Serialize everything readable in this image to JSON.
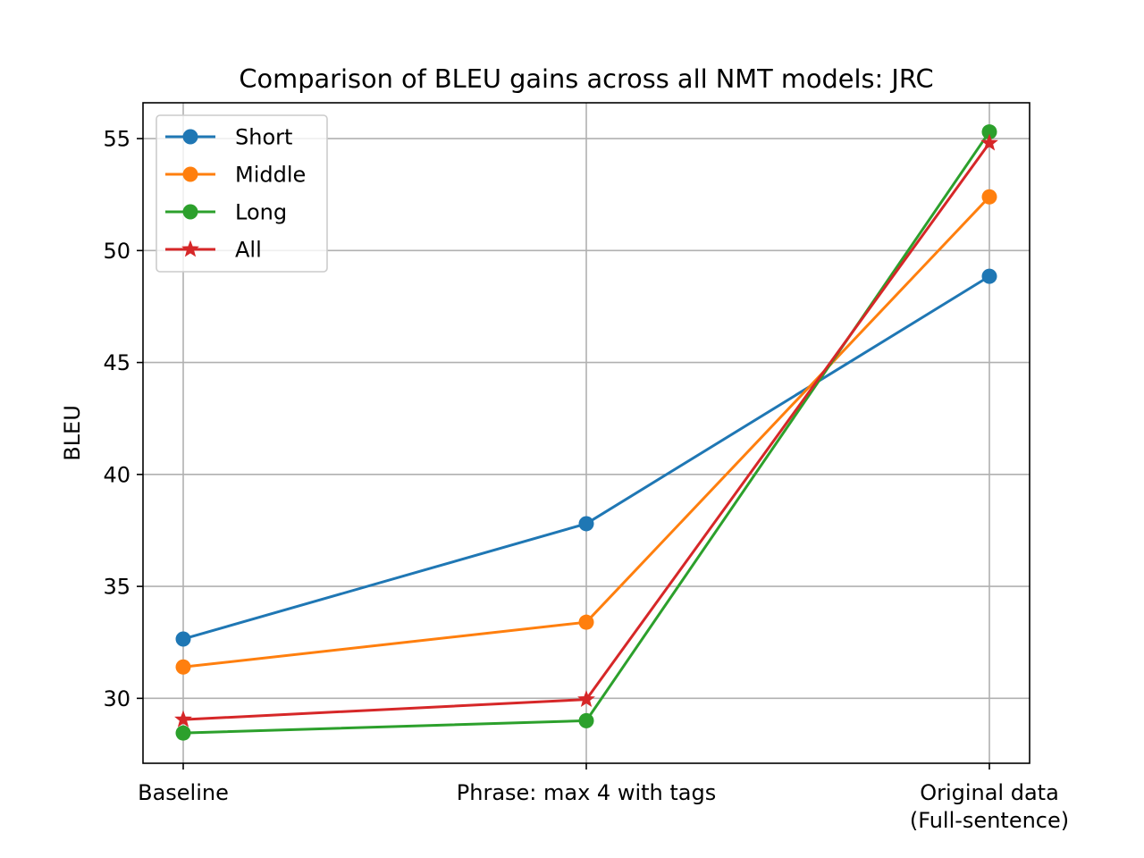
{
  "chart_data": {
    "type": "line",
    "title": "Comparison of BLEU gains across all NMT models: JRC",
    "xlabel": "",
    "ylabel": "BLEU",
    "categories": [
      [
        "Baseline"
      ],
      [
        "Phrase: max 4 with tags"
      ],
      [
        "Original data",
        "(Full-sentence)"
      ]
    ],
    "ylim": [
      27.1,
      56.6
    ],
    "yticks": [
      30,
      35,
      40,
      45,
      50,
      55
    ],
    "grid": true,
    "legend_position": "top-left",
    "series": [
      {
        "name": "Short",
        "color": "#1f77b4",
        "marker": "circle",
        "values": [
          32.65,
          37.8,
          48.85
        ]
      },
      {
        "name": "Middle",
        "color": "#ff7f0e",
        "marker": "circle",
        "values": [
          31.4,
          33.4,
          52.4
        ]
      },
      {
        "name": "Long",
        "color": "#2ca02c",
        "marker": "circle",
        "values": [
          28.45,
          29.0,
          55.3
        ]
      },
      {
        "name": "All",
        "color": "#d62728",
        "marker": "star",
        "values": [
          29.05,
          29.95,
          54.8
        ]
      }
    ]
  }
}
